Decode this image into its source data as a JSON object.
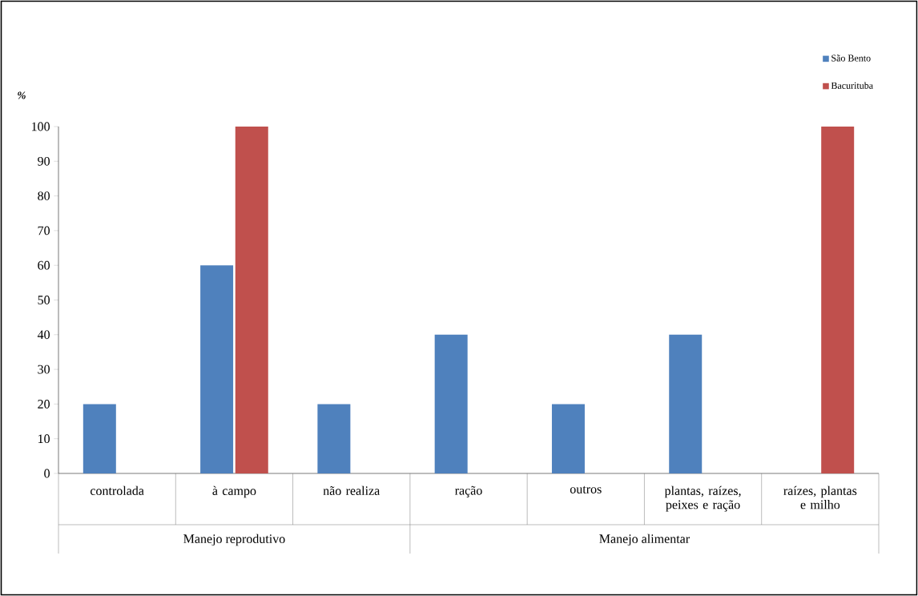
{
  "chart_data": {
    "type": "bar",
    "ylabel": "%",
    "categories": [
      "controlada",
      "à campo",
      "não realiza",
      "ração",
      "outros",
      "plantas, raízes, peixes e ração",
      "raízes, plantas e milho"
    ],
    "series": [
      {
        "name": "São Bento",
        "color": "#4f81bd",
        "values": [
          20,
          60,
          20,
          40,
          20,
          40,
          null
        ]
      },
      {
        "name": "Bacurituba",
        "color": "#c0504d",
        "values": [
          null,
          100,
          null,
          null,
          null,
          null,
          100
        ]
      }
    ],
    "ylim": [
      0,
      100
    ],
    "yticks": [
      0,
      10,
      20,
      30,
      40,
      50,
      60,
      70,
      80,
      90,
      100
    ],
    "annotations": [
      "Manejo reprodutivo",
      "Manejo alimentar"
    ],
    "grid": false,
    "legend": "top right"
  }
}
